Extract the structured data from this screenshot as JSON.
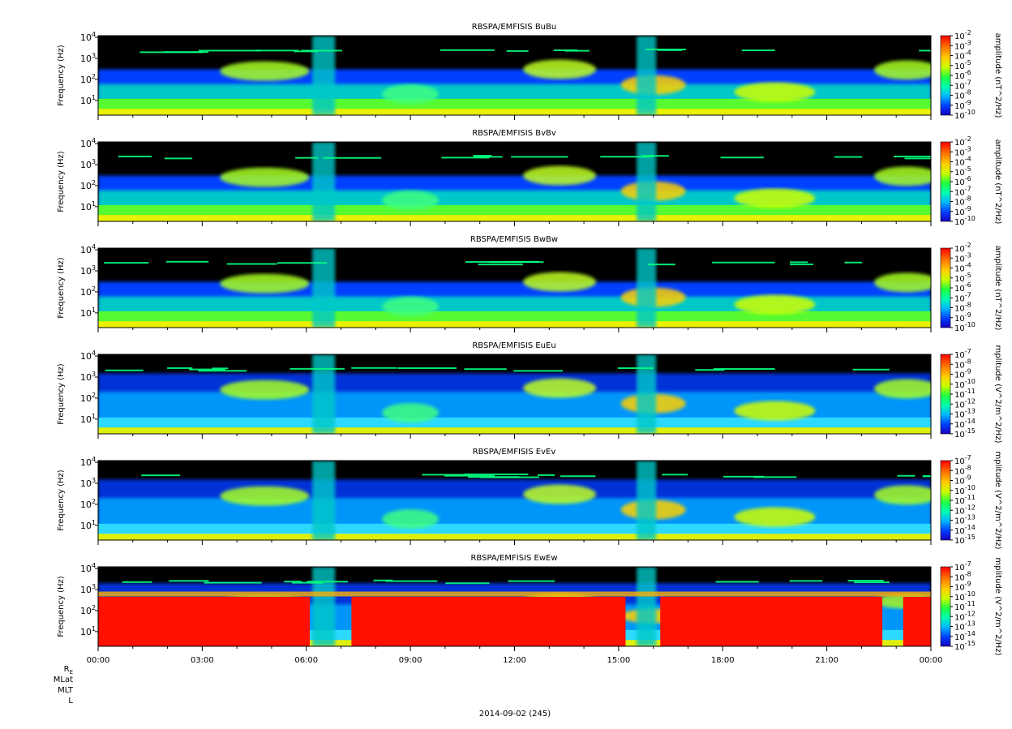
{
  "chart_data": [
    {
      "type": "heatmap",
      "title": "RBSPA/EMFISIS  BuBu",
      "ylabel": "Frequency (Hz)",
      "yscale": "log",
      "ylim": [
        2,
        12000
      ],
      "yticks": [
        {
          "base": "10",
          "exp": "4"
        },
        {
          "base": "10",
          "exp": "3"
        },
        {
          "base": "10",
          "exp": "2"
        },
        {
          "base": "10",
          "exp": "1"
        }
      ],
      "colorbar": {
        "label": "amplitude (nT^2/Hz)",
        "ticks": [
          "-2",
          "-3",
          "-4",
          "-5",
          "-6",
          "-7",
          "-8",
          "-9",
          "-10"
        ],
        "scale": "log"
      }
    },
    {
      "type": "heatmap",
      "title": "RBSPA/EMFISIS  BvBv",
      "ylabel": "Frequency (Hz)",
      "yscale": "log",
      "ylim": [
        2,
        12000
      ],
      "yticks": [
        {
          "base": "10",
          "exp": "4"
        },
        {
          "base": "10",
          "exp": "3"
        },
        {
          "base": "10",
          "exp": "2"
        },
        {
          "base": "10",
          "exp": "1"
        }
      ],
      "colorbar": {
        "label": "amplitude (nT^2/Hz)",
        "ticks": [
          "-2",
          "-3",
          "-4",
          "-5",
          "-6",
          "-7",
          "-8",
          "-9",
          "-10"
        ],
        "scale": "log"
      }
    },
    {
      "type": "heatmap",
      "title": "RBSPA/EMFISIS  BwBw",
      "ylabel": "Frequency (Hz)",
      "yscale": "log",
      "ylim": [
        2,
        12000
      ],
      "yticks": [
        {
          "base": "10",
          "exp": "4"
        },
        {
          "base": "10",
          "exp": "3"
        },
        {
          "base": "10",
          "exp": "2"
        },
        {
          "base": "10",
          "exp": "1"
        }
      ],
      "colorbar": {
        "label": "amplitude (nT^2/Hz)",
        "ticks": [
          "-2",
          "-3",
          "-4",
          "-5",
          "-6",
          "-7",
          "-8",
          "-9",
          "-10"
        ],
        "scale": "log"
      }
    },
    {
      "type": "heatmap",
      "title": "RBSPA/EMFISIS  EuEu",
      "ylabel": "Frequency (Hz)",
      "yscale": "log",
      "ylim": [
        2,
        12000
      ],
      "yticks": [
        {
          "base": "10",
          "exp": "4"
        },
        {
          "base": "10",
          "exp": "3"
        },
        {
          "base": "10",
          "exp": "2"
        },
        {
          "base": "10",
          "exp": "1"
        }
      ],
      "colorbar": {
        "label": "mplitude (V^2/m^2/Hz)",
        "ticks": [
          "-7",
          "-8",
          "-9",
          "-10",
          "-11",
          "-12",
          "-13",
          "-14",
          "-15"
        ],
        "scale": "log"
      }
    },
    {
      "type": "heatmap",
      "title": "RBSPA/EMFISIS  EvEv",
      "ylabel": "Frequency (Hz)",
      "yscale": "log",
      "ylim": [
        2,
        12000
      ],
      "yticks": [
        {
          "base": "10",
          "exp": "4"
        },
        {
          "base": "10",
          "exp": "3"
        },
        {
          "base": "10",
          "exp": "2"
        },
        {
          "base": "10",
          "exp": "1"
        }
      ],
      "colorbar": {
        "label": "mplitude (V^2/m^2/Hz)",
        "ticks": [
          "-7",
          "-8",
          "-9",
          "-10",
          "-11",
          "-12",
          "-13",
          "-14",
          "-15"
        ],
        "scale": "log"
      }
    },
    {
      "type": "heatmap",
      "title": "RBSPA/EMFISIS  EwEw",
      "ylabel": "Frequency (Hz)",
      "yscale": "log",
      "ylim": [
        2,
        12000
      ],
      "yticks": [
        {
          "base": "10",
          "exp": "4"
        },
        {
          "base": "10",
          "exp": "3"
        },
        {
          "base": "10",
          "exp": "2"
        },
        {
          "base": "10",
          "exp": "1"
        }
      ],
      "colorbar": {
        "label": "mplitude (V^2/m^2/Hz)",
        "ticks": [
          "-7",
          "-8",
          "-9",
          "-10",
          "-11",
          "-12",
          "-13",
          "-14",
          "-15"
        ],
        "scale": "log"
      }
    }
  ],
  "x_axis": {
    "tick_labels": [
      "00:00",
      "03:00",
      "06:00",
      "09:00",
      "12:00",
      "15:00",
      "18:00",
      "21:00",
      "00:00"
    ],
    "ephemeris_labels": [
      "RE",
      "MLat",
      "MLT",
      "L"
    ],
    "re_base": "R",
    "re_sub": "E",
    "date_label": "2014-09-02 (245)"
  },
  "colors": {
    "background": "#000000",
    "colormap": [
      "#1a00c8",
      "#0050ff",
      "#00c8ff",
      "#00ff90",
      "#50ff00",
      "#d8ff00",
      "#ffd000",
      "#ff7000",
      "#ff1000"
    ]
  }
}
